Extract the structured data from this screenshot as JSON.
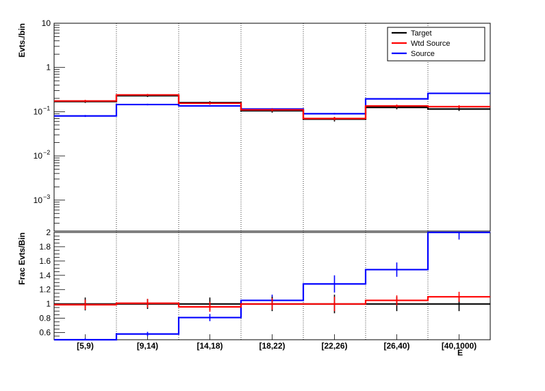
{
  "chart_data": [
    {
      "panel": "top",
      "type": "step",
      "ylabel": "Evts./bin",
      "yscale": "log",
      "ylim": [
        0.0002,
        10
      ],
      "ytick_labels": [
        {
          "value": 10,
          "base": "10",
          "exp": ""
        },
        {
          "value": 1,
          "base": "1",
          "exp": ""
        },
        {
          "value": 0.1,
          "base": "10",
          "exp": "−1"
        },
        {
          "value": 0.01,
          "base": "10",
          "exp": "−2"
        },
        {
          "value": 0.001,
          "base": "10",
          "exp": "−3"
        }
      ],
      "grid": "vertical-dotted",
      "legend": {
        "placement": "top-right",
        "entries": [
          {
            "name": "Target",
            "color": "#000000"
          },
          {
            "name": "Wtd Source",
            "color": "#ff0000"
          },
          {
            "name": "Source",
            "color": "#0000ff"
          }
        ]
      },
      "categories": [
        "[5,9)",
        "[9,14)",
        "[14,18)",
        "[18,22)",
        "[22,26)",
        "[26,40)",
        "[40,1000)"
      ],
      "series": [
        {
          "name": "Target",
          "color": "#000000",
          "values": [
            0.17,
            0.23,
            0.16,
            0.105,
            0.068,
            0.125,
            0.115
          ],
          "errors": [
            0.012,
            0.015,
            0.012,
            0.01,
            0.008,
            0.012,
            0.011
          ]
        },
        {
          "name": "Wtd Source",
          "color": "#ff0000",
          "values": [
            0.175,
            0.24,
            0.155,
            0.11,
            0.07,
            0.135,
            0.13
          ],
          "errors": [
            0.01,
            0.012,
            0.01,
            0.008,
            0.006,
            0.01,
            0.01
          ]
        },
        {
          "name": "Source",
          "color": "#0000ff",
          "values": [
            0.08,
            0.145,
            0.135,
            0.115,
            0.09,
            0.195,
            0.26
          ],
          "errors": [
            0.004,
            0.006,
            0.005,
            0.005,
            0.004,
            0.007,
            0.008
          ]
        }
      ]
    },
    {
      "panel": "bottom",
      "type": "step",
      "ylabel": "Frac Evts/Bin",
      "xlabel": "E",
      "yscale": "linear",
      "ylim": [
        0.5,
        2.0
      ],
      "yticks": [
        0.6,
        0.8,
        1,
        1.2,
        1.4,
        1.6,
        1.8,
        2
      ],
      "ytick_labels": [
        "0.6",
        "0.8",
        "1",
        "1.2",
        "1.4",
        "1.6",
        "1.8",
        "2"
      ],
      "categories": [
        "[5,9)",
        "[9,14)",
        "[14,18)",
        "[18,22)",
        "[22,26)",
        "[26,40)",
        "[40,1000)"
      ],
      "series": [
        {
          "name": "Target",
          "color": "#000000",
          "values": [
            1,
            1,
            1,
            1,
            1,
            1,
            1
          ],
          "errors": [
            0.09,
            0.07,
            0.09,
            0.1,
            0.13,
            0.1,
            0.1
          ]
        },
        {
          "name": "Wtd Source",
          "color": "#ff0000",
          "values": [
            0.99,
            1.01,
            0.96,
            1.0,
            1.0,
            1.05,
            1.1
          ],
          "errors": [
            0.07,
            0.06,
            0.07,
            0.08,
            0.1,
            0.07,
            0.07
          ]
        },
        {
          "name": "Source",
          "color": "#0000ff",
          "values": [
            0.5,
            0.58,
            0.81,
            1.05,
            1.28,
            1.48,
            2.02
          ],
          "errors": [
            0.02,
            0.03,
            0.05,
            0.08,
            0.12,
            0.1,
            0.12
          ]
        }
      ]
    }
  ]
}
